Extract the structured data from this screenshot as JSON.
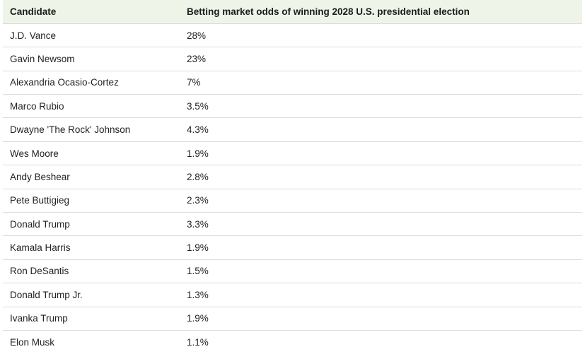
{
  "table": {
    "header": [
      "Candidate",
      "Betting market odds of winning 2028 U.S. presidential election"
    ],
    "rows": [
      [
        "J.D. Vance",
        "28%"
      ],
      [
        "Gavin Newsom",
        "23%"
      ],
      [
        "Alexandria Ocasio-Cortez",
        "7%"
      ],
      [
        "Marco Rubio",
        "3.5%"
      ],
      [
        "Dwayne 'The Rock' Johnson",
        "4.3%"
      ],
      [
        "Wes Moore",
        "1.9%"
      ],
      [
        "Andy Beshear",
        "2.8%"
      ],
      [
        "Pete Buttigieg",
        "2.3%"
      ],
      [
        "Donald Trump",
        "3.3%"
      ],
      [
        "Kamala Harris",
        "1.9%"
      ],
      [
        "Ron DeSantis",
        "1.5%"
      ],
      [
        "Donald Trump Jr.",
        "1.3%"
      ],
      [
        "Ivanka Trump",
        "1.9%"
      ],
      [
        "Elon Musk",
        "1.1%"
      ]
    ]
  }
}
